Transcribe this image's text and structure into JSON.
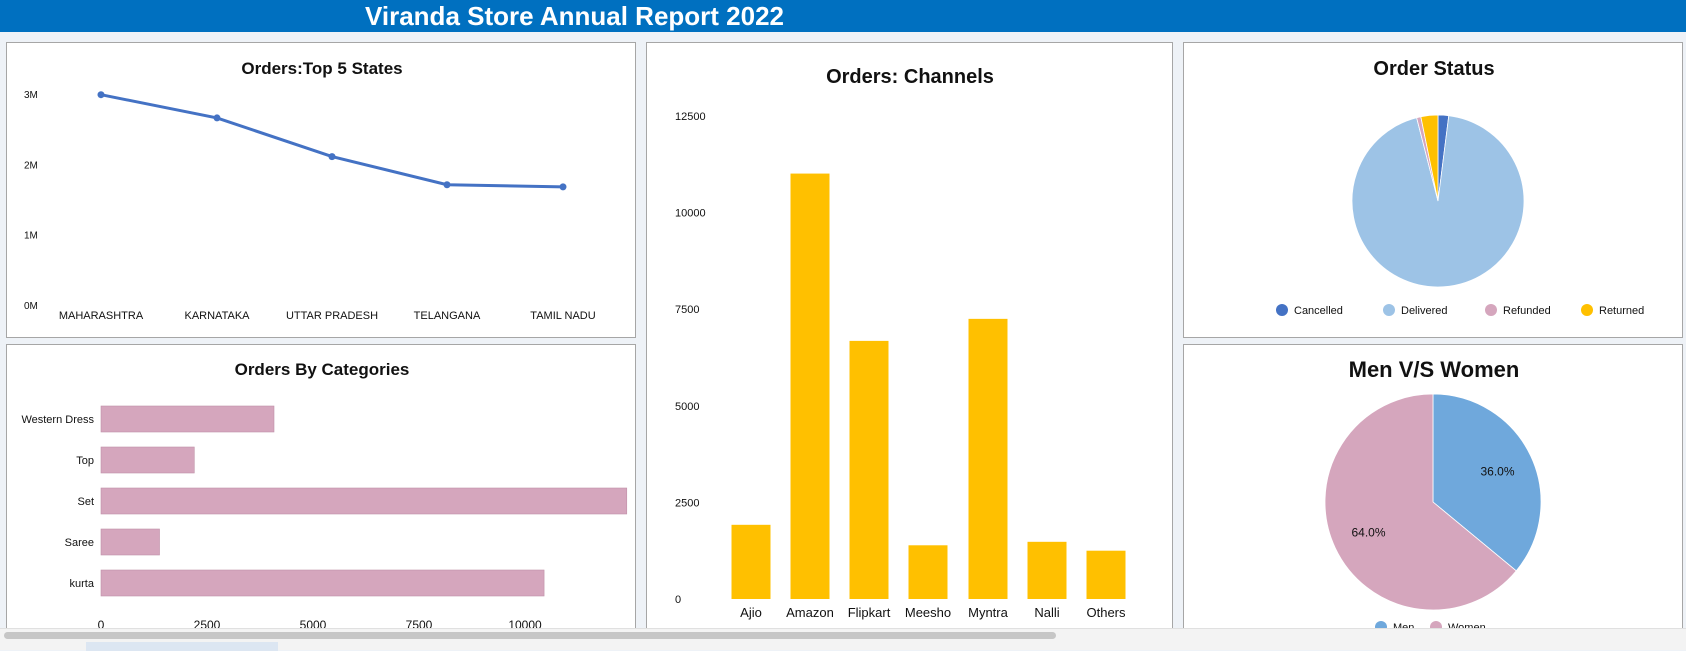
{
  "header": {
    "title": "Viranda Store Annual Report 2022"
  },
  "colors": {
    "header_bg": "#0070c0",
    "line": "#4472c4",
    "bars_channels": "#ffc000",
    "bars_categories": "#d5a6bd",
    "status": {
      "Cancelled": "#4472c4",
      "Delivered": "#9dc3e6",
      "Refunded": "#d5a6bd",
      "Returned": "#ffc000"
    },
    "gender": {
      "Men": "#6fa8dc",
      "Women": "#d5a6bd"
    }
  },
  "chart_data": [
    {
      "id": "states",
      "type": "line",
      "title": "Orders:Top 5 States",
      "categories": [
        "MAHARASHTRA",
        "KARNATAKA",
        "UTTAR PRADESH",
        "TELANGANA",
        "TAMIL NADU"
      ],
      "values": [
        2990000,
        2660000,
        2110000,
        1710000,
        1680000
      ],
      "ylim": [
        0,
        3000000
      ],
      "yticks": [
        0,
        1000000,
        2000000,
        3000000
      ],
      "yticklabels": [
        "0M",
        "1M",
        "2M",
        "3M"
      ],
      "grid": false,
      "legend": "none"
    },
    {
      "id": "categories",
      "type": "bar",
      "orientation": "horizontal",
      "title": "Orders By Categories",
      "categories": [
        "Western Dress",
        "Top",
        "Set",
        "Saree",
        "kurta"
      ],
      "values": [
        4080,
        2200,
        12400,
        1380,
        10450
      ],
      "xlim": [
        0,
        12500
      ],
      "xticks": [
        0,
        2500,
        5000,
        7500,
        10000
      ],
      "grid": false,
      "legend": "none"
    },
    {
      "id": "channels",
      "type": "bar",
      "title": "Orders: Channels",
      "categories": [
        "Ajio",
        "Amazon",
        "Flipkart",
        "Meesho",
        "Myntra",
        "Nalli",
        "Others"
      ],
      "values": [
        1920,
        11010,
        6680,
        1390,
        7250,
        1480,
        1250
      ],
      "ylim": [
        0,
        12500
      ],
      "yticks": [
        0,
        2500,
        5000,
        7500,
        10000,
        12500
      ],
      "grid": false,
      "legend": "none"
    },
    {
      "id": "status",
      "type": "pie",
      "title": "Order Status",
      "labels": [
        "Cancelled",
        "Delivered",
        "Refunded",
        "Returned"
      ],
      "values": [
        2.0,
        94.0,
        0.8,
        3.2
      ],
      "legend": "bottom"
    },
    {
      "id": "gender",
      "type": "pie",
      "title": "Men V/S Women",
      "labels": [
        "Men",
        "Women"
      ],
      "values": [
        36.0,
        64.0
      ],
      "data_labels": [
        "36.0%",
        "64.0%"
      ],
      "legend": "bottom"
    }
  ]
}
